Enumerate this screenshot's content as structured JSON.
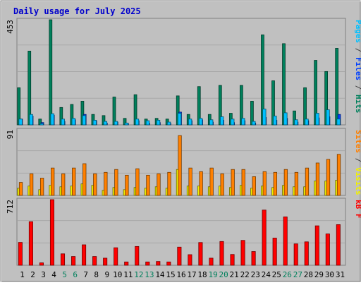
{
  "chart_data": {
    "type": "bar",
    "title": "Daily usage for July 2025",
    "days": [
      "1",
      "2",
      "3",
      "4",
      "5",
      "6",
      "7",
      "8",
      "9",
      "10",
      "11",
      "12",
      "13",
      "14",
      "15",
      "16",
      "17",
      "18",
      "19",
      "20",
      "21",
      "22",
      "23",
      "24",
      "25",
      "26",
      "27",
      "28",
      "29",
      "30",
      "31"
    ],
    "weekend_days": [
      "5",
      "6",
      "12",
      "13",
      "19",
      "20",
      "26",
      "27"
    ],
    "panels": [
      {
        "id": "top",
        "max_label": "453",
        "ymax": 453,
        "legend": [
          {
            "text": "Pages",
            "color": "#00c0ff"
          },
          {
            "text": " / ",
            "color": "#444444"
          },
          {
            "text": "Files",
            "color": "#0040ff"
          },
          {
            "text": " / ",
            "color": "#444444"
          },
          {
            "text": "Hits",
            "color": "#00805c"
          }
        ],
        "series": [
          {
            "name": "Hits",
            "color": "#00805c",
            "values": [
              160,
              318,
              25,
              453,
              75,
              88,
              102,
              45,
              40,
              120,
              28,
              130,
              25,
              28,
              25,
              125,
              45,
              165,
              45,
              170,
              50,
              170,
              102,
              388,
              190,
              350,
              60,
              160,
              278,
              230,
              330
            ]
          },
          {
            "name": "Files",
            "color": "#0040ff",
            "values": [
              25,
              38,
              10,
              42,
              15,
              22,
              45,
              18,
              8,
              12,
              6,
              18,
              8,
              10,
              7,
              55,
              18,
              22,
              12,
              20,
              10,
              18,
              8,
              32,
              20,
              28,
              12,
              18,
              30,
              35,
              45
            ]
          },
          {
            "name": "Pages",
            "color": "#00c0ff",
            "values": [
              25,
              45,
              5,
              48,
              25,
              28,
              40,
              20,
              15,
              15,
              8,
              25,
              18,
              20,
              12,
              50,
              25,
              28,
              22,
              35,
              25,
              28,
              15,
              68,
              38,
              52,
              22,
              25,
              50,
              65,
              25
            ]
          }
        ]
      },
      {
        "id": "middle",
        "max_label": "91",
        "ymax": 91,
        "legend": [
          {
            "text": "Sites",
            "color": "#ff8000"
          },
          {
            "text": " / ",
            "color": "#444444"
          },
          {
            "text": "Visits",
            "color": "#f0f000"
          }
        ],
        "series": [
          {
            "name": "Visits",
            "color": "#f0f000",
            "values": [
              10,
              13,
              8,
              14,
              12,
              13,
              16,
              14,
              7,
              11,
              8,
              11,
              10,
              12,
              10,
              36,
              13,
              13,
              12,
              13,
              11,
              14,
              10,
              13,
              11,
              14,
              12,
              12,
              20,
              20,
              21
            ]
          },
          {
            "name": "Sites",
            "color": "#ff8000",
            "values": [
              18,
              30,
              24,
              38,
              30,
              38,
              44,
              30,
              32,
              36,
              28,
              37,
              28,
              30,
              32,
              83,
              38,
              33,
              38,
              30,
              36,
              36,
              26,
              33,
              32,
              36,
              32,
              38,
              45,
              50,
              57
            ]
          }
        ]
      },
      {
        "id": "bottom",
        "max_label": "712",
        "ymax": 712,
        "legend": [
          {
            "text": "kB F",
            "color": "#ff0000"
          }
        ],
        "series": [
          {
            "name": "kB F",
            "color": "#ff0000",
            "values": [
              248,
              473,
              26,
              712,
              124,
              95,
              222,
              95,
              77,
              190,
              36,
              204,
              36,
              41,
              36,
              197,
              115,
              247,
              77,
              258,
              117,
              270,
              149,
              599,
              295,
              525,
              232,
              254,
              428,
              340,
              441
            ]
          }
        ]
      }
    ]
  }
}
